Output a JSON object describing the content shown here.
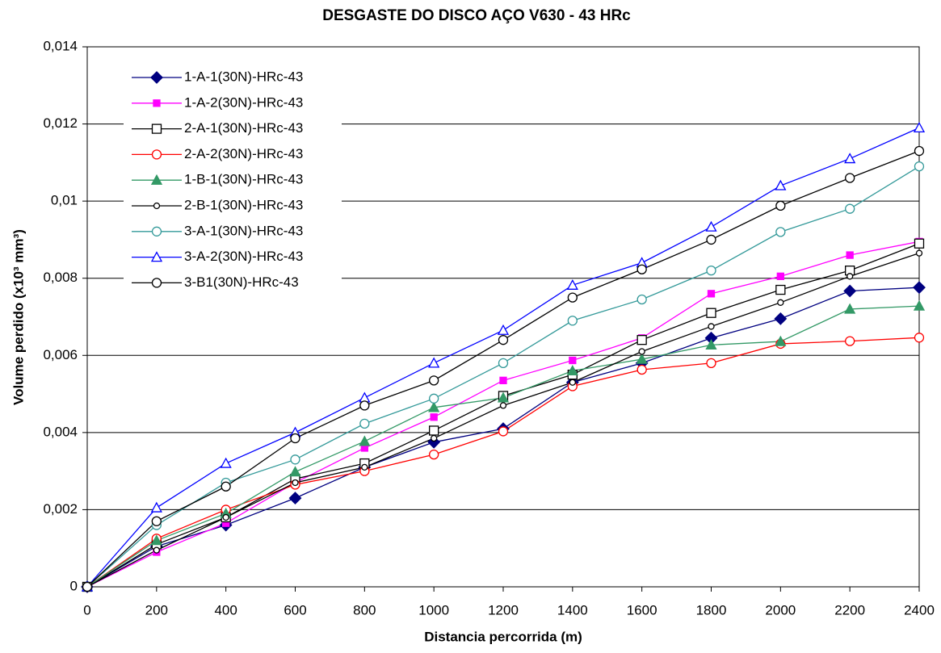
{
  "chart_data": {
    "type": "line",
    "title": "DESGASTE DO DISCO AÇO V630 - 43 HRc",
    "x_label": "Distancia percorrida (m)",
    "y_label": "Volume perdido (x10³ mm³)",
    "x": [
      0,
      200,
      400,
      600,
      800,
      1000,
      1200,
      1400,
      1600,
      1800,
      2000,
      2200,
      2400
    ],
    "xlim": [
      0,
      2400
    ],
    "xticks": [
      0,
      200,
      400,
      600,
      800,
      1000,
      1200,
      1400,
      1600,
      1800,
      2000,
      2200,
      2400
    ],
    "ylim": [
      0,
      0.014
    ],
    "yticks": [
      0,
      {
        "value": 0.002,
        "label": "0,002"
      },
      {
        "value": 0.004,
        "label": "0,004"
      },
      {
        "value": 0.006,
        "label": "0,006"
      },
      {
        "value": 0.008,
        "label": "0,008"
      },
      {
        "value": 0.01,
        "label": "0,01"
      },
      {
        "value": 0.012,
        "label": "0,012"
      },
      {
        "value": 0.014,
        "label": "0,014"
      }
    ],
    "grid": true,
    "legend": "upper left",
    "series": [
      {
        "name": "1-A-1(30N)-HRc-43",
        "color": "#000080",
        "marker": "diamond",
        "filled": true,
        "values": [
          0,
          0.00105,
          0.0016,
          0.0023,
          0.0031,
          0.00375,
          0.0041,
          0.0053,
          0.0058,
          0.00645,
          0.00695,
          0.00767,
          0.00776
        ]
      },
      {
        "name": "1-A-2(30N)-HRc-43",
        "color": "#ff00ff",
        "marker": "square",
        "filled": true,
        "values": [
          0,
          0.0009,
          0.00165,
          0.0027,
          0.0036,
          0.0044,
          0.00535,
          0.00587,
          0.00645,
          0.0076,
          0.00805,
          0.0086,
          0.00895
        ]
      },
      {
        "name": "2-A-1(30N)-HRc-43",
        "color": "#000000",
        "marker": "square",
        "filled": false,
        "values": [
          0,
          0.0011,
          0.0018,
          0.0028,
          0.0032,
          0.00405,
          0.00495,
          0.0055,
          0.0064,
          0.0071,
          0.0077,
          0.0082,
          0.0089
        ]
      },
      {
        "name": "2-A-2(30N)-HRc-43",
        "color": "#ff0000",
        "marker": "circle",
        "filled": false,
        "values": [
          0,
          0.00125,
          0.002,
          0.00265,
          0.003,
          0.00343,
          0.00403,
          0.0052,
          0.00563,
          0.0058,
          0.0063,
          0.00637,
          0.00646
        ]
      },
      {
        "name": "1-B-1(30N)-HRc-43",
        "color": "#339966",
        "marker": "triangle",
        "filled": true,
        "values": [
          0,
          0.0012,
          0.0019,
          0.00298,
          0.00377,
          0.00465,
          0.0049,
          0.0056,
          0.0059,
          0.00627,
          0.00636,
          0.0072,
          0.00728
        ]
      },
      {
        "name": "2-B-1(30N)-HRc-43",
        "color": "#000000",
        "marker": "small-circle",
        "filled": false,
        "values": [
          0,
          0.00095,
          0.0018,
          0.0027,
          0.0031,
          0.00385,
          0.0047,
          0.0053,
          0.0061,
          0.00675,
          0.00737,
          0.00805,
          0.00865
        ]
      },
      {
        "name": "3-A-1(30N)-HRc-43",
        "color": "#339999",
        "marker": "circle",
        "filled": false,
        "values": [
          0,
          0.0016,
          0.0027,
          0.0033,
          0.00423,
          0.00488,
          0.0058,
          0.0069,
          0.00745,
          0.0082,
          0.0092,
          0.0098,
          0.0109
        ]
      },
      {
        "name": "3-A-2(30N)-HRc-43",
        "color": "#0000ff",
        "marker": "triangle",
        "filled": false,
        "values": [
          0,
          0.00205,
          0.0032,
          0.004,
          0.0049,
          0.0058,
          0.00665,
          0.00782,
          0.0084,
          0.00933,
          0.0104,
          0.0111,
          0.0119
        ]
      },
      {
        "name": "3-B1(30N)-HRc-43",
        "color": "#000000",
        "marker": "circle",
        "filled": false,
        "values": [
          0,
          0.0017,
          0.0026,
          0.00385,
          0.0047,
          0.00535,
          0.0064,
          0.0075,
          0.00823,
          0.009,
          0.00988,
          0.0106,
          0.0113
        ]
      }
    ]
  }
}
